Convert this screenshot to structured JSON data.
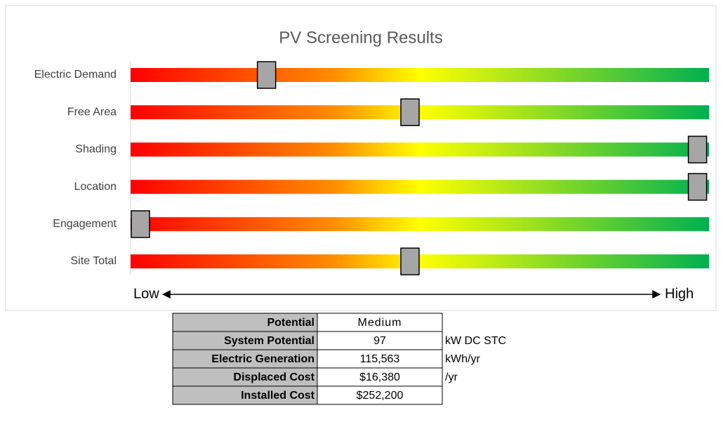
{
  "chart_data": {
    "type": "slider",
    "title": "PV Screening Results",
    "categories": [
      "Electric Demand",
      "Free Area",
      "Shading",
      "Location",
      "Engagement",
      "Site Total"
    ],
    "values": [
      23.5,
      48.3,
      98,
      98,
      1.7,
      48.3
    ],
    "xlim": [
      0,
      100
    ],
    "colors": [
      "#ff0000",
      "#ff8c00",
      "#ffff00",
      "#00b050"
    ],
    "marker_color": "#a6a6a6",
    "low_label": "Low",
    "high_label": "High"
  },
  "table": {
    "rows": [
      {
        "label": "Potential",
        "value": "Medium"
      },
      {
        "label": "System Potential",
        "value": "97",
        "unit": "kW DC STC"
      },
      {
        "label": "Electric Generation",
        "value": "115,563",
        "unit": "kWh/yr"
      },
      {
        "label": "Displaced Cost",
        "value": "$16,380",
        "unit": "/yr"
      },
      {
        "label": "Installed Cost",
        "value": "$252,200"
      }
    ]
  }
}
